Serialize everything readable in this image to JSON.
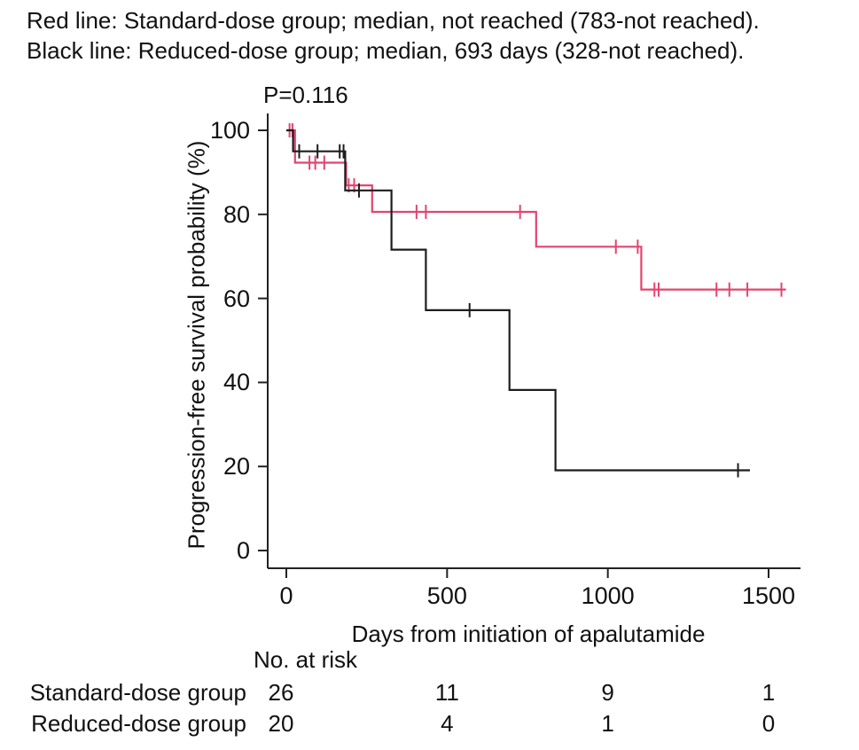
{
  "legend_note": {
    "line1": "Red line: Standard-dose group; median, not reached (783-not reached).",
    "line2": "Black line: Reduced-dose group; median, 693 days (328-not reached)."
  },
  "chart_data": {
    "type": "line",
    "subtype": "kaplan-meier-step",
    "title": "P=0.116",
    "xlabel": "Days from initiation of apalutamide",
    "ylabel": "Progression-free survival probability (%)",
    "xlim": [
      0,
      1500
    ],
    "ylim": [
      0,
      100
    ],
    "xticks": [
      0,
      500,
      1000,
      1500
    ],
    "yticks": [
      0,
      20,
      40,
      60,
      80,
      100
    ],
    "grid": false,
    "axis_color": "#222222",
    "series": [
      {
        "name": "Standard-dose group",
        "color": "#e2456f",
        "median": "not reached (783-not reached)",
        "steps": [
          [
            0,
            100
          ],
          [
            27,
            100
          ],
          [
            27,
            92.3
          ],
          [
            186,
            92.3
          ],
          [
            186,
            86.9
          ],
          [
            267,
            86.9
          ],
          [
            267,
            80.6
          ],
          [
            777,
            80.6
          ],
          [
            777,
            72.3
          ],
          [
            1104,
            72.3
          ],
          [
            1104,
            62.1
          ],
          [
            1554,
            62.1
          ]
        ],
        "censors": [
          [
            10,
            100
          ],
          [
            19,
            100
          ],
          [
            72,
            92.3
          ],
          [
            90,
            92.3
          ],
          [
            118,
            92.3
          ],
          [
            194,
            86.9
          ],
          [
            211,
            86.9
          ],
          [
            405,
            80.6
          ],
          [
            434,
            80.6
          ],
          [
            727,
            80.6
          ],
          [
            1025,
            72.3
          ],
          [
            1093,
            72.3
          ],
          [
            1145,
            62.1
          ],
          [
            1158,
            62.1
          ],
          [
            1338,
            62.1
          ],
          [
            1378,
            62.1
          ],
          [
            1434,
            62.1
          ],
          [
            1540,
            62.1
          ]
        ]
      },
      {
        "name": "Reduced-dose group",
        "color": "#1d1d1d",
        "median": "693 days (328-not reached)",
        "steps": [
          [
            0,
            100
          ],
          [
            21,
            100
          ],
          [
            21,
            95
          ],
          [
            183,
            95
          ],
          [
            183,
            85.7
          ],
          [
            327,
            85.7
          ],
          [
            327,
            71.6
          ],
          [
            434,
            71.6
          ],
          [
            434,
            57.2
          ],
          [
            694,
            57.2
          ],
          [
            694,
            38.2
          ],
          [
            837,
            38.2
          ],
          [
            837,
            19.1
          ],
          [
            1442,
            19.1
          ]
        ],
        "censors": [
          [
            40,
            95
          ],
          [
            97,
            95
          ],
          [
            166,
            95
          ],
          [
            178,
            95
          ],
          [
            226,
            85.7
          ],
          [
            570,
            57.2
          ],
          [
            1405,
            19.1
          ]
        ]
      }
    ]
  },
  "risk_table": {
    "title": "No. at risk",
    "time_points": [
      0,
      500,
      1000,
      1500
    ],
    "rows": [
      {
        "label": "Standard-dose group",
        "values": [
          "26",
          "11",
          "9",
          "1"
        ]
      },
      {
        "label": "Reduced-dose group",
        "values": [
          "20",
          "4",
          "1",
          "0"
        ]
      }
    ]
  }
}
